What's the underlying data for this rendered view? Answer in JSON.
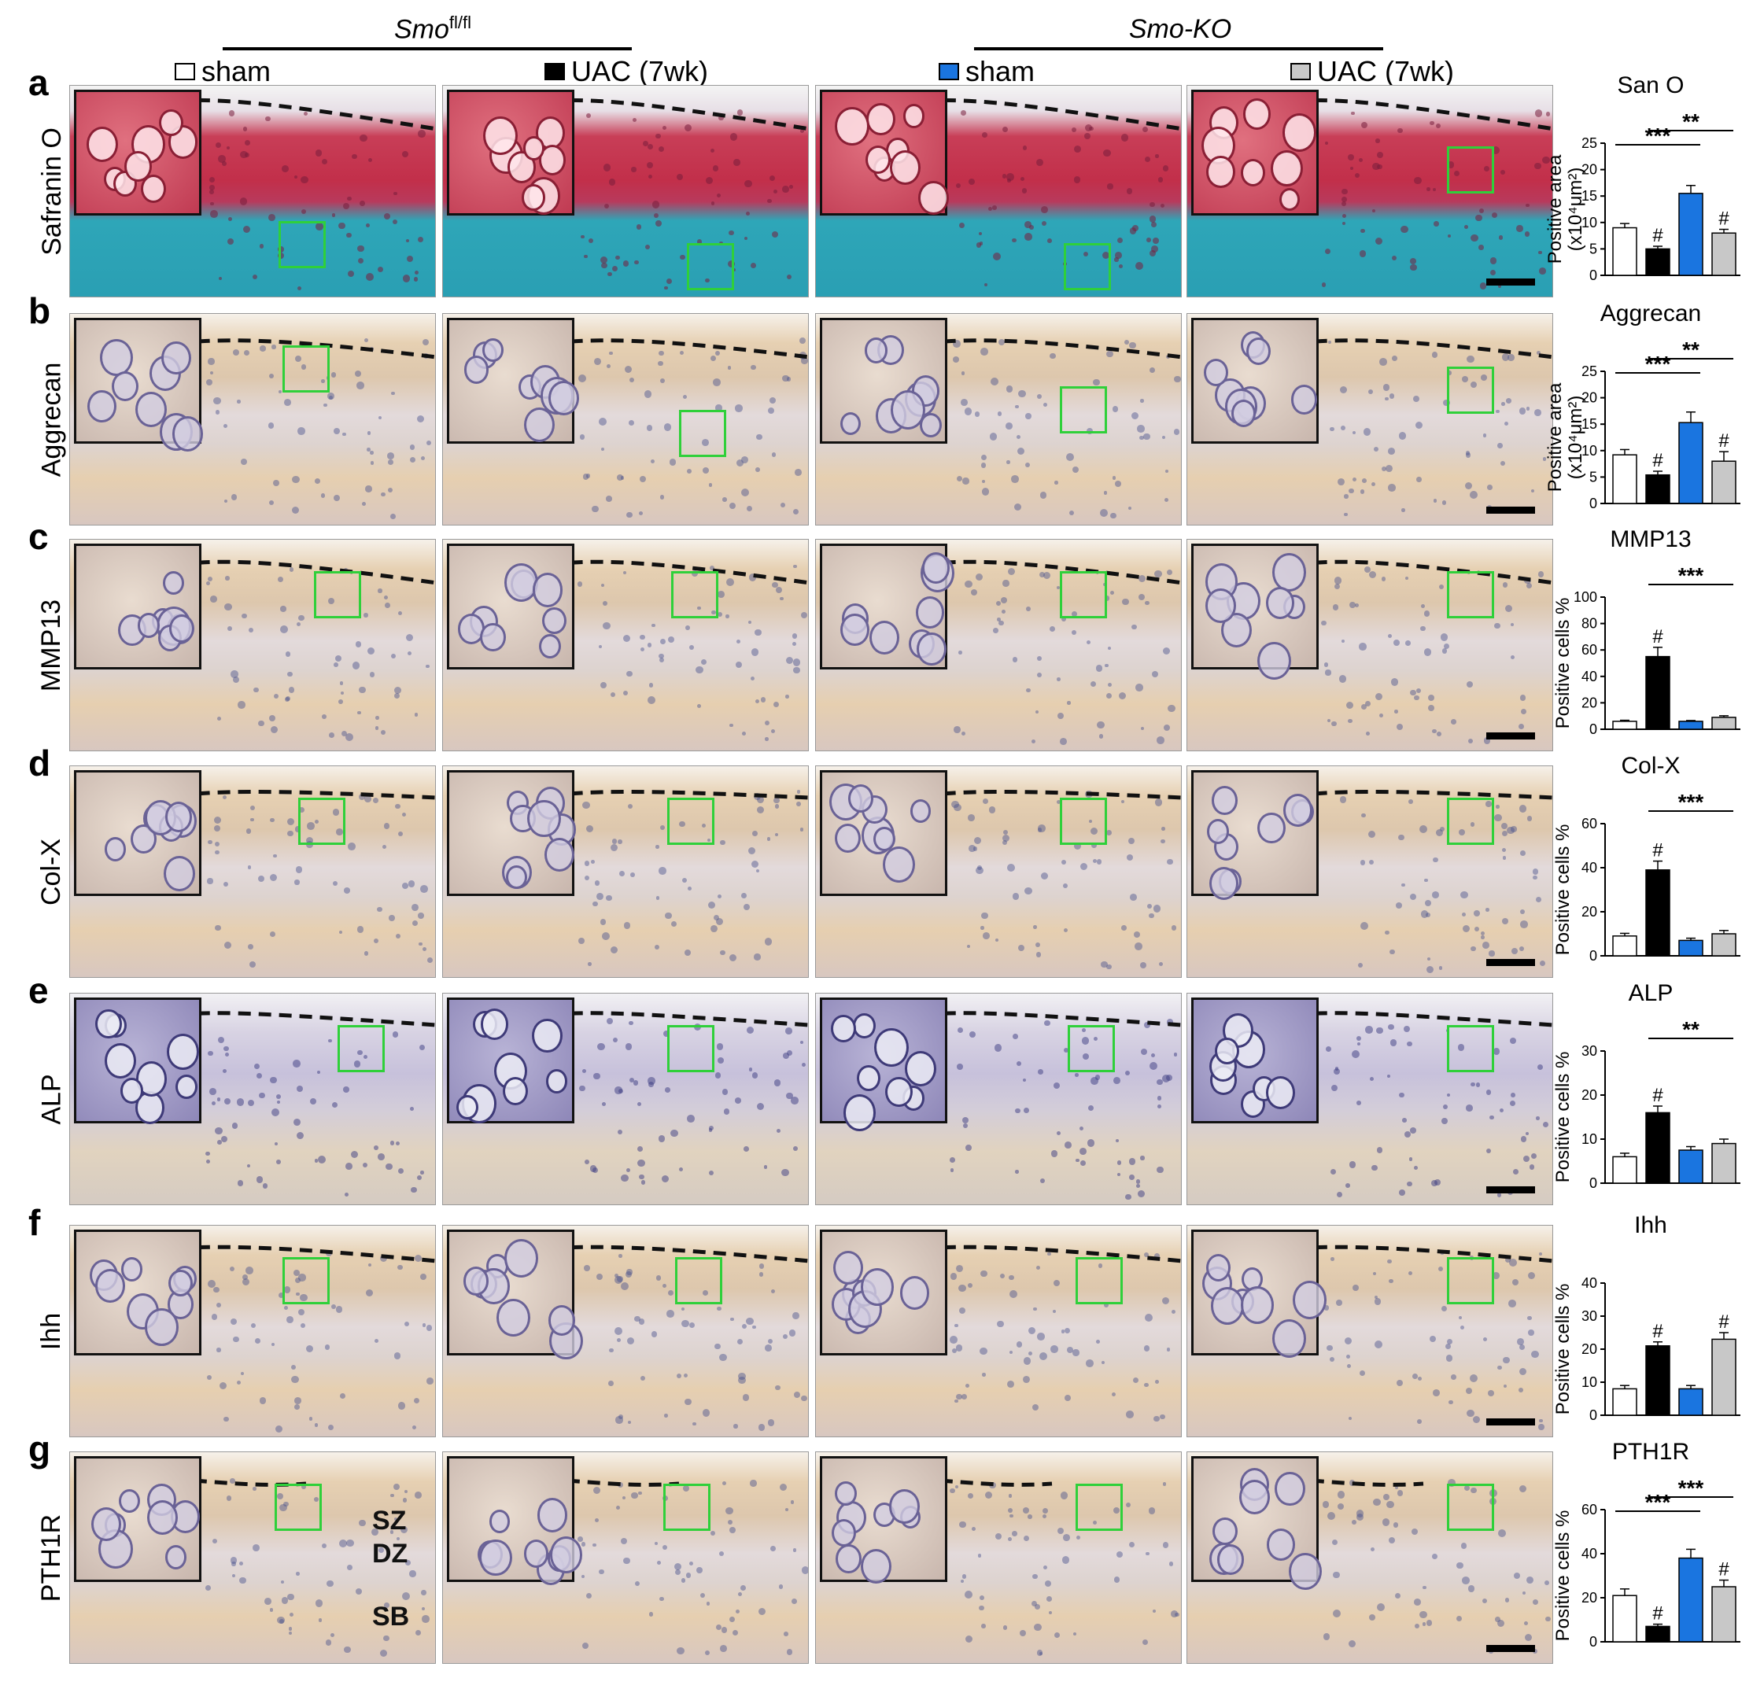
{
  "header": {
    "group1": {
      "label": "Smo",
      "sup": "fl/fl"
    },
    "group2": {
      "label": "Smo-KO"
    },
    "legend": [
      {
        "label": "sham",
        "color": "#ffffff"
      },
      {
        "label": "UAC (7wk)",
        "color": "#000000"
      },
      {
        "label": "sham",
        "color": "#1a75e0"
      },
      {
        "label": "UAC (7wk)",
        "color": "#c8c8c8"
      }
    ]
  },
  "rows": [
    {
      "letter": "a",
      "label": "Safranin O",
      "theme": "safranin"
    },
    {
      "letter": "b",
      "label": "Aggrecan",
      "theme": "ihc"
    },
    {
      "letter": "c",
      "label": "MMP13",
      "theme": "ihc"
    },
    {
      "letter": "d",
      "label": "Col-X",
      "theme": "ihc"
    },
    {
      "letter": "e",
      "label": "ALP",
      "theme": "alp"
    },
    {
      "letter": "f",
      "label": "Ihh",
      "theme": "ihc"
    },
    {
      "letter": "g",
      "label": "PTH1R",
      "theme": "ihc"
    }
  ],
  "zone_labels": {
    "sz": "SZ",
    "dz": "DZ",
    "sb": "SB"
  },
  "chart_data": [
    {
      "type": "bar",
      "title": "San O",
      "ylabel": "Positive area",
      "ylabel2": "(x10⁴μm²)",
      "ylim": [
        0,
        25
      ],
      "yticks": [
        0,
        5,
        10,
        15,
        20,
        25
      ],
      "values": [
        9,
        5,
        15.5,
        8
      ],
      "errors": [
        0.8,
        0.5,
        1.5,
        0.7
      ],
      "hash": [
        false,
        true,
        false,
        true
      ],
      "sig": [
        {
          "from": 0,
          "to": 2,
          "text": "***",
          "level": 0
        },
        {
          "from": 1,
          "to": 3,
          "text": "**",
          "level": 1
        }
      ]
    },
    {
      "type": "bar",
      "title": "Aggrecan",
      "ylabel": "Positive area",
      "ylabel2": "(x10⁴μm²)",
      "ylim": [
        0,
        25
      ],
      "yticks": [
        0,
        5,
        10,
        15,
        20,
        25
      ],
      "values": [
        9.2,
        5.4,
        15.3,
        8
      ],
      "errors": [
        1.0,
        0.7,
        2.0,
        1.8
      ],
      "hash": [
        false,
        true,
        false,
        true
      ],
      "sig": [
        {
          "from": 0,
          "to": 2,
          "text": "***",
          "level": 0
        },
        {
          "from": 1,
          "to": 3,
          "text": "**",
          "level": 1
        }
      ]
    },
    {
      "type": "bar",
      "title": "MMP13",
      "ylabel": "Positive cells %",
      "ylabel2": "",
      "ylim": [
        0,
        100
      ],
      "yticks": [
        0,
        20,
        40,
        60,
        80,
        100
      ],
      "values": [
        6,
        55,
        6,
        9
      ],
      "errors": [
        0.8,
        7,
        0.6,
        1.2
      ],
      "hash": [
        false,
        true,
        false,
        false
      ],
      "sig": [
        {
          "from": 1,
          "to": 3,
          "text": "***",
          "level": 1
        }
      ]
    },
    {
      "type": "bar",
      "title": "Col-X",
      "ylabel": "Positive cells %",
      "ylabel2": "",
      "ylim": [
        0,
        60
      ],
      "yticks": [
        0,
        20,
        40,
        60
      ],
      "values": [
        9,
        39,
        7,
        10
      ],
      "errors": [
        1.2,
        4,
        1,
        1.5
      ],
      "hash": [
        false,
        true,
        false,
        false
      ],
      "sig": [
        {
          "from": 1,
          "to": 3,
          "text": "***",
          "level": 1
        }
      ]
    },
    {
      "type": "bar",
      "title": "ALP",
      "ylabel": "Positive cells %",
      "ylabel2": "",
      "ylim": [
        0,
        30
      ],
      "yticks": [
        0,
        10,
        20,
        30
      ],
      "values": [
        6,
        16,
        7.5,
        9
      ],
      "errors": [
        0.8,
        1.5,
        0.8,
        1
      ],
      "hash": [
        false,
        true,
        false,
        false
      ],
      "sig": [
        {
          "from": 1,
          "to": 3,
          "text": "**",
          "level": 1
        }
      ]
    },
    {
      "type": "bar",
      "title": "Ihh",
      "ylabel": "Positive cells %",
      "ylabel2": "",
      "ylim": [
        0,
        40
      ],
      "yticks": [
        0,
        10,
        20,
        30,
        40
      ],
      "values": [
        8,
        21,
        8,
        23
      ],
      "errors": [
        1,
        1.2,
        1,
        2
      ],
      "hash": [
        false,
        true,
        false,
        true
      ],
      "sig": []
    },
    {
      "type": "bar",
      "title": "PTH1R",
      "ylabel": "Positive cells %",
      "ylabel2": "",
      "ylim": [
        0,
        60
      ],
      "yticks": [
        0,
        20,
        40,
        60
      ],
      "values": [
        21,
        7,
        38,
        25
      ],
      "errors": [
        3,
        1,
        4,
        3
      ],
      "hash": [
        false,
        true,
        false,
        true
      ],
      "sig": [
        {
          "from": 0,
          "to": 2,
          "text": "***",
          "level": 0
        },
        {
          "from": 1,
          "to": 3,
          "text": "***",
          "level": 1
        }
      ]
    }
  ]
}
